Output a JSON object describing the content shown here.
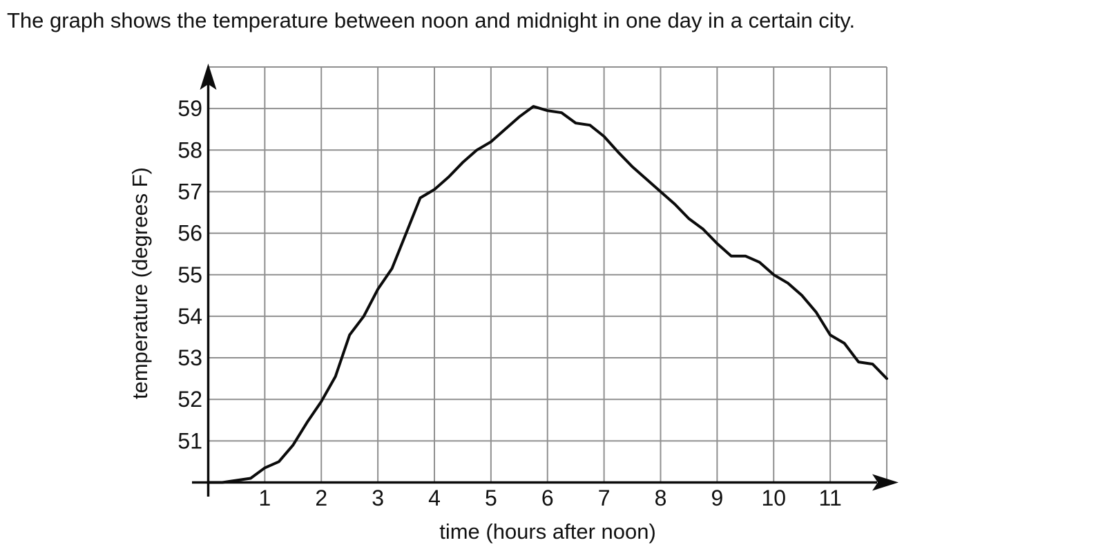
{
  "problem": {
    "statement": "The graph shows the temperature between noon and midnight in one day in a certain city."
  },
  "chart_data": {
    "type": "line",
    "title": "",
    "xlabel": "time (hours after noon)",
    "ylabel": "temperature (degrees F)",
    "xlim": [
      0,
      12
    ],
    "ylim": [
      50,
      60
    ],
    "grid": true,
    "grid_step": 1,
    "x_ticks": [
      1,
      2,
      3,
      4,
      5,
      6,
      7,
      8,
      9,
      10,
      11
    ],
    "y_ticks": [
      51,
      52,
      53,
      54,
      55,
      56,
      57,
      58,
      59
    ],
    "legend": "none",
    "line_color": "#0b0b0b",
    "grid_color": "#8f8f8f",
    "axis_color": "#0b0b0b",
    "x": [
      0,
      0.25,
      0.5,
      0.75,
      1,
      1.25,
      1.5,
      1.75,
      2,
      2.25,
      2.5,
      2.75,
      3,
      3.25,
      3.5,
      3.75,
      4,
      4.25,
      4.5,
      4.75,
      5,
      5.25,
      5.5,
      5.75,
      6,
      6.25,
      6.5,
      6.75,
      7,
      7.25,
      7.5,
      7.75,
      8,
      8.25,
      8.5,
      8.75,
      9,
      9.25,
      9.5,
      9.75,
      10,
      10.25,
      10.5,
      10.75,
      11,
      11.25,
      11.5,
      11.75,
      12
    ],
    "y": [
      50,
      50,
      50.05,
      50.1,
      50.35,
      50.5,
      50.9,
      51.45,
      51.95,
      52.55,
      53.55,
      54,
      54.65,
      55.15,
      56,
      56.85,
      57.05,
      57.35,
      57.7,
      58,
      58.2,
      58.5,
      58.8,
      59.05,
      58.95,
      58.9,
      58.65,
      58.6,
      58.33,
      57.95,
      57.6,
      57.3,
      57,
      56.7,
      56.35,
      56.1,
      55.75,
      55.45,
      55.45,
      55.3,
      55,
      54.8,
      54.5,
      54.1,
      53.55,
      53.35,
      52.9,
      52.85,
      52.5
    ]
  }
}
